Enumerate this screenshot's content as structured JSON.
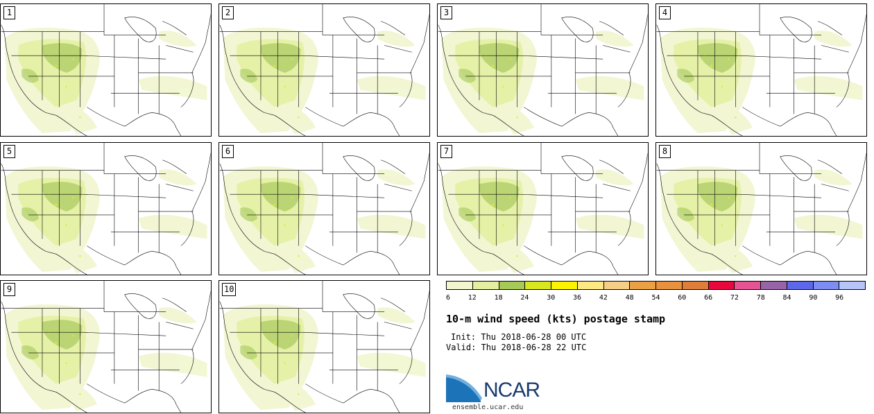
{
  "panels": [
    {
      "label": "1"
    },
    {
      "label": "2"
    },
    {
      "label": "3"
    },
    {
      "label": "4"
    },
    {
      "label": "5"
    },
    {
      "label": "6"
    },
    {
      "label": "7"
    },
    {
      "label": "8"
    },
    {
      "label": "9"
    },
    {
      "label": "10"
    }
  ],
  "colorbar": {
    "colors": [
      "#f1f6cf",
      "#e4f09f",
      "#a7c957",
      "#d9e81e",
      "#fcf300",
      "#fde983",
      "#f6cf86",
      "#eba046",
      "#e8923d",
      "#df7d3b",
      "#e8083c",
      "#e65494",
      "#9864a8",
      "#5d67ea",
      "#7e8df2",
      "#b6c4f7"
    ],
    "ticks": [
      "6",
      "12",
      "18",
      "24",
      "30",
      "36",
      "42",
      "48",
      "54",
      "60",
      "66",
      "72",
      "78",
      "84",
      "90",
      "96"
    ]
  },
  "title": "10-m wind speed (kts) postage stamp",
  "init": "Init: Thu 2018-06-28 00 UTC",
  "valid": "Valid: Thu 2018-06-28 22 UTC",
  "logo": {
    "text": "NCAR",
    "url": "ensemble.ucar.edu"
  }
}
